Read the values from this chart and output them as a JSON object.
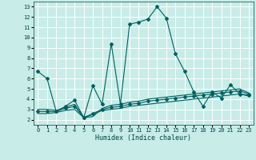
{
  "xlabel": "Humidex (Indice chaleur)",
  "bg_color": "#c8ece8",
  "grid_color": "#ffffff",
  "line_color": "#006060",
  "xlim": [
    -0.5,
    23.5
  ],
  "ylim": [
    1.5,
    13.5
  ],
  "xticks": [
    0,
    1,
    2,
    3,
    4,
    5,
    6,
    7,
    8,
    9,
    10,
    11,
    12,
    13,
    14,
    15,
    16,
    17,
    18,
    19,
    20,
    21,
    22,
    23
  ],
  "yticks": [
    2,
    3,
    4,
    5,
    6,
    7,
    8,
    9,
    10,
    11,
    12,
    13
  ],
  "line1_x": [
    0,
    1,
    2,
    3,
    4,
    5,
    6,
    7,
    8,
    9,
    10,
    11,
    12,
    13,
    14,
    15,
    16,
    17,
    18,
    19,
    20,
    21,
    22,
    23
  ],
  "line1_y": [
    6.7,
    6.0,
    2.8,
    3.3,
    3.9,
    2.2,
    5.3,
    3.5,
    9.4,
    3.5,
    11.3,
    11.5,
    11.8,
    13.0,
    11.9,
    8.4,
    6.7,
    4.7,
    3.3,
    4.7,
    4.1,
    5.4,
    4.5,
    4.4
  ],
  "line2_x": [
    0,
    1,
    2,
    3,
    4,
    5,
    6,
    7,
    8,
    9,
    10,
    11,
    12,
    13,
    14,
    15,
    16,
    17,
    18,
    19,
    20,
    21,
    22,
    23
  ],
  "line2_y": [
    2.8,
    2.8,
    2.8,
    3.1,
    3.3,
    2.2,
    2.6,
    3.0,
    3.2,
    3.3,
    3.5,
    3.6,
    3.8,
    3.9,
    4.0,
    4.1,
    4.2,
    4.3,
    4.4,
    4.5,
    4.6,
    4.7,
    4.8,
    4.5
  ],
  "line3_x": [
    0,
    1,
    2,
    3,
    4,
    5,
    6,
    7,
    8,
    9,
    10,
    11,
    12,
    13,
    14,
    15,
    16,
    17,
    18,
    19,
    20,
    21,
    22,
    23
  ],
  "line3_y": [
    2.6,
    2.6,
    2.7,
    2.9,
    3.0,
    2.2,
    2.5,
    2.9,
    3.0,
    3.1,
    3.3,
    3.4,
    3.5,
    3.6,
    3.7,
    3.8,
    3.9,
    4.0,
    4.1,
    4.2,
    4.3,
    4.4,
    4.5,
    4.3
  ],
  "line4_x": [
    0,
    1,
    2,
    3,
    4,
    5,
    6,
    7,
    8,
    9,
    10,
    11,
    12,
    13,
    14,
    15,
    16,
    17,
    18,
    19,
    20,
    21,
    22,
    23
  ],
  "line4_y": [
    3.0,
    3.0,
    2.9,
    3.2,
    3.5,
    2.2,
    2.3,
    3.1,
    3.4,
    3.5,
    3.7,
    3.8,
    4.0,
    4.1,
    4.2,
    4.3,
    4.4,
    4.5,
    4.6,
    4.7,
    4.8,
    4.9,
    5.0,
    4.6
  ]
}
